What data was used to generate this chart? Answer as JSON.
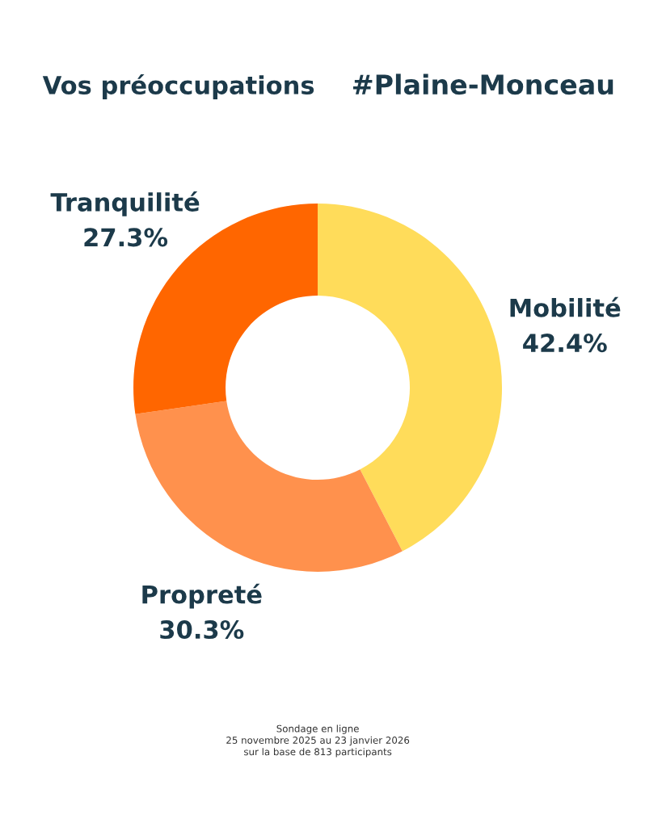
{
  "chart_data": {
    "type": "donut",
    "title": "Vos préoccupations",
    "subtitle": "#Plaine-Monceau",
    "categories": [
      "Mobilité",
      "Propreté",
      "Tranquilité"
    ],
    "values": [
      42.4,
      30.3,
      27.3
    ],
    "colors": [
      "#ffdc5a",
      "#ff914d",
      "#ff6600"
    ],
    "value_labels": [
      "42.4%",
      "30.3%",
      "27.3%"
    ],
    "annotations": [
      "Sondage en ligne",
      "25 novembre 2025 au 23 janvier 2026",
      "sur la base de 813 participants"
    ]
  }
}
